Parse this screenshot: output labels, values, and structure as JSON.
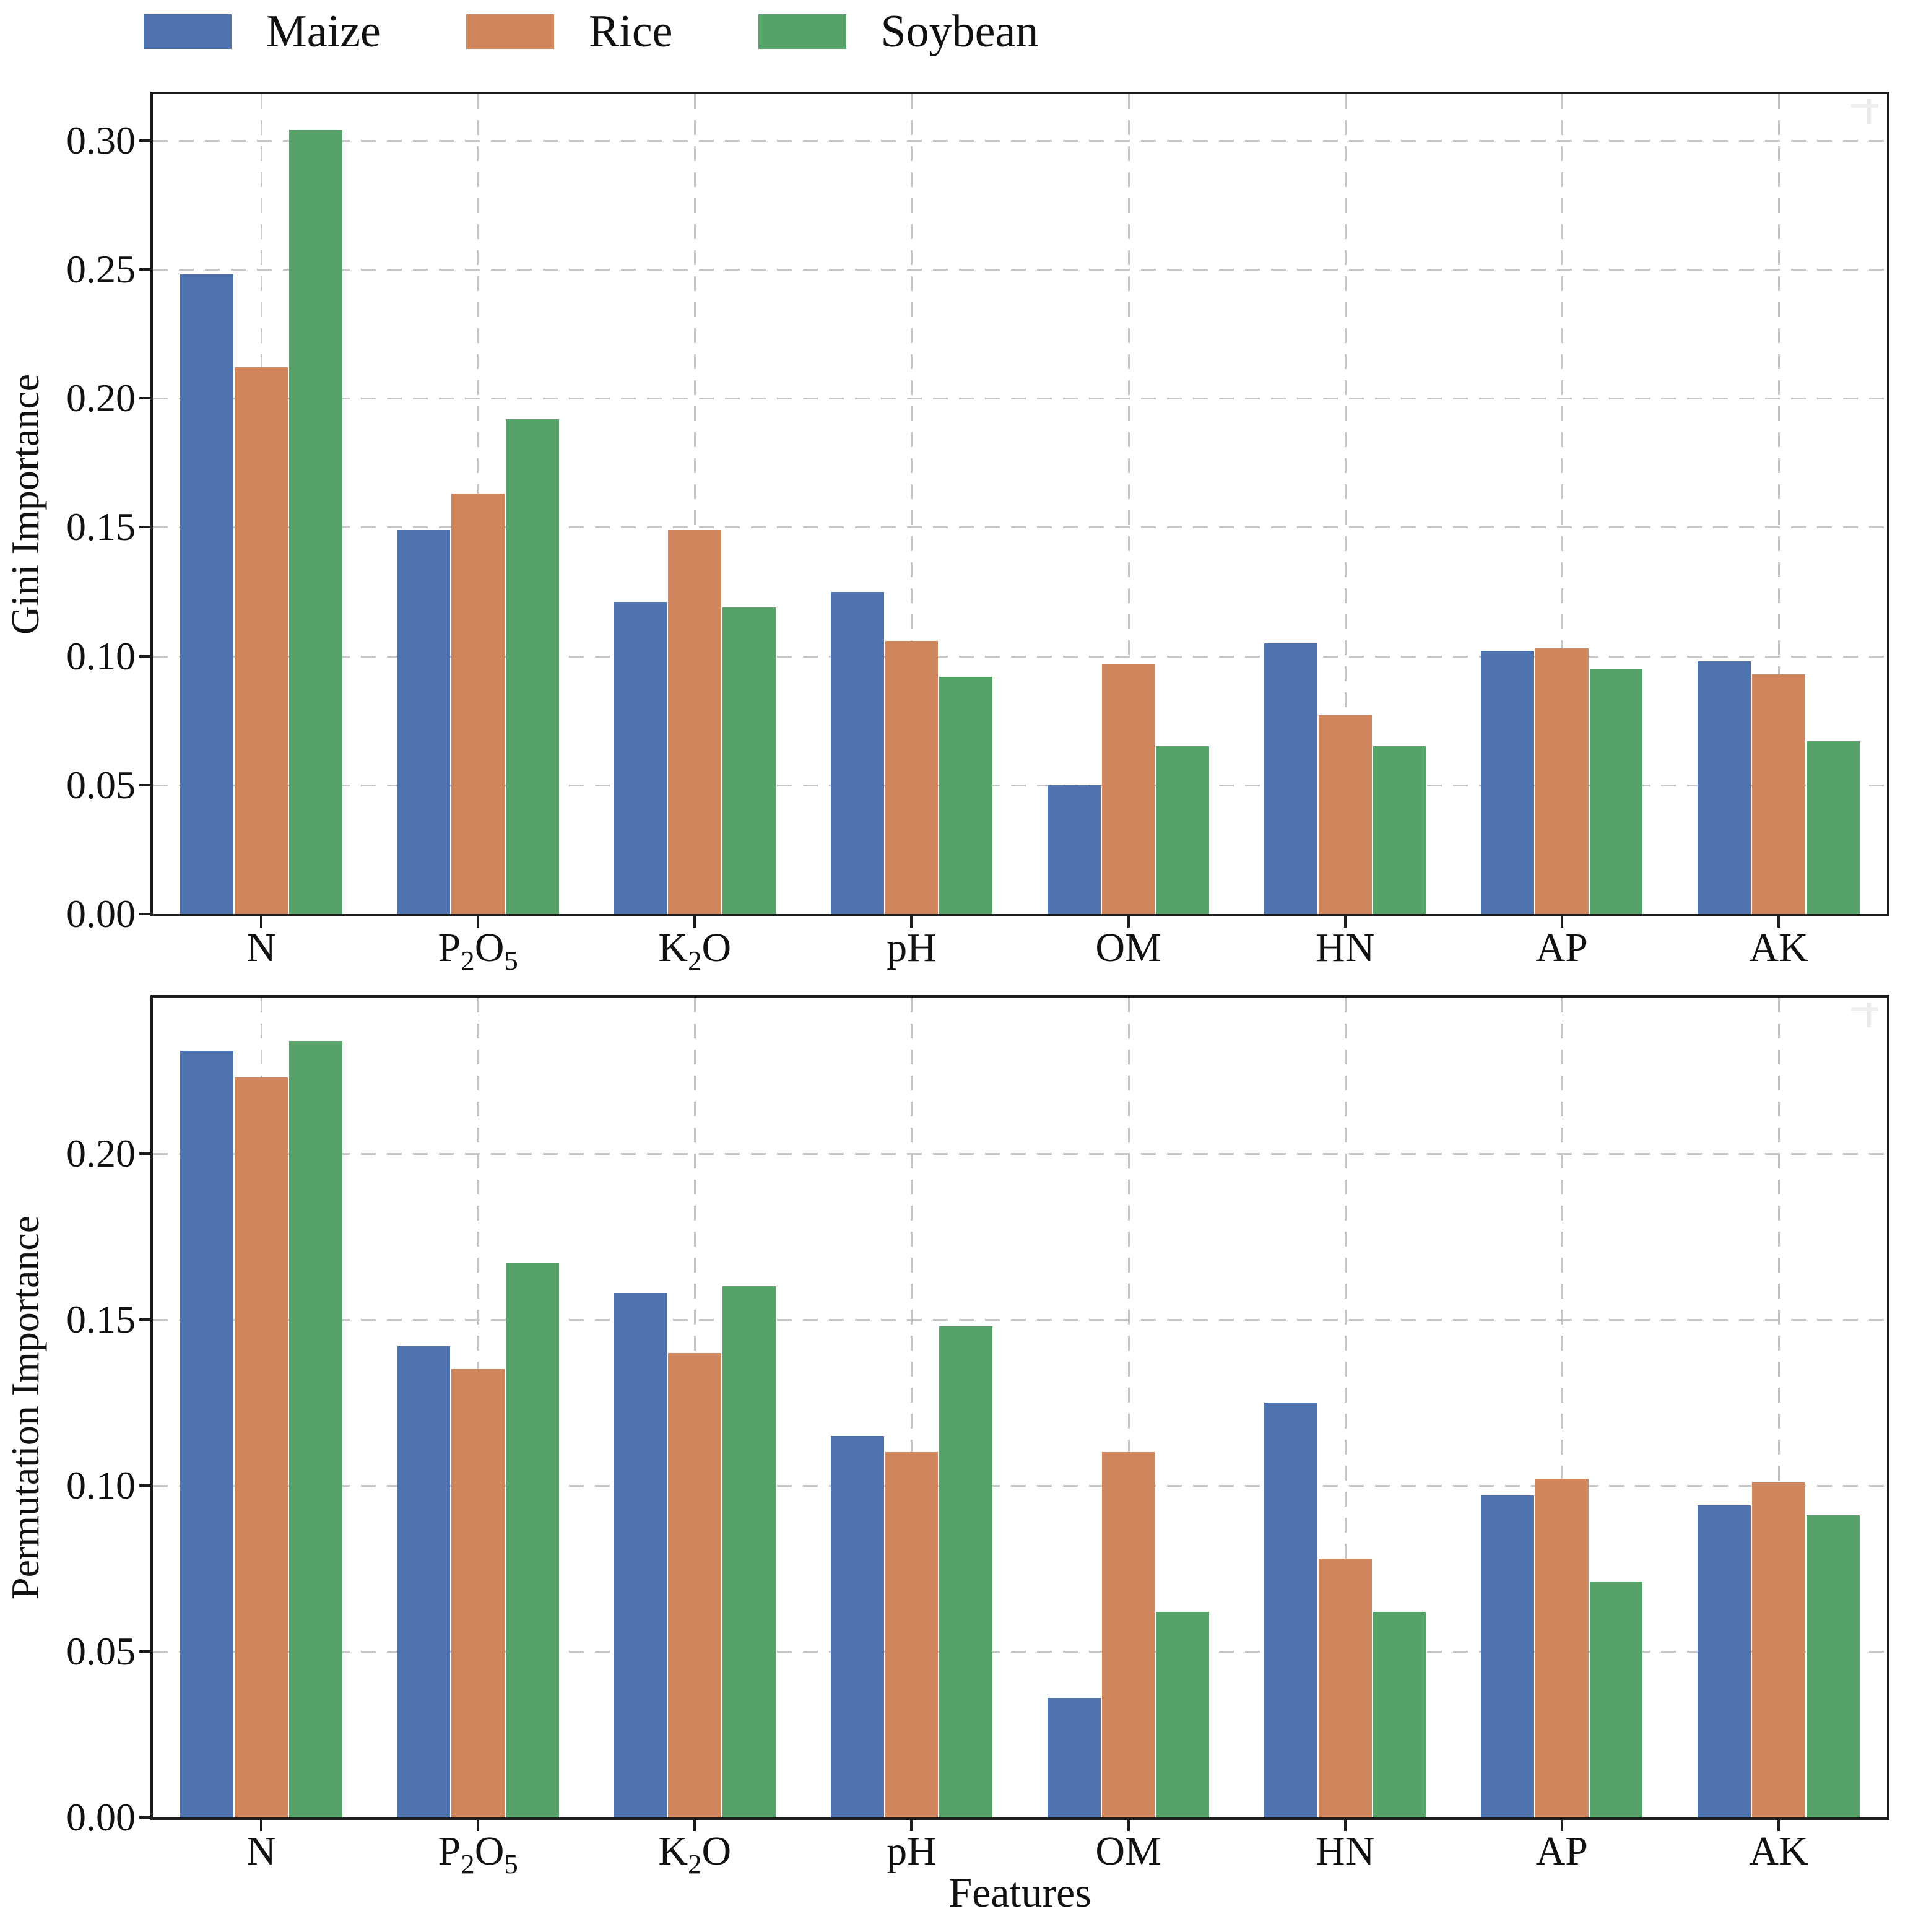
{
  "figure": {
    "description": "Two vertically stacked grouped bar charts comparing feature importance of soil properties for three crops"
  },
  "legend": {
    "items": [
      {
        "label": "Maize",
        "color": "#4f73ae"
      },
      {
        "label": "Rice",
        "color": "#d0875d"
      },
      {
        "label": "Soybean",
        "color": "#57a268"
      }
    ]
  },
  "chart_data": [
    {
      "type": "bar",
      "panel": "top",
      "title": "",
      "ylabel": "Gini Importance",
      "xlabel": "",
      "categories": [
        "N",
        "P₂O₅",
        "K₂O",
        "pH",
        "OM",
        "HN",
        "AP",
        "AK"
      ],
      "series": [
        {
          "name": "Maize",
          "color": "#4f73ae",
          "values": [
            0.248,
            0.149,
            0.121,
            0.125,
            0.05,
            0.105,
            0.102,
            0.098
          ]
        },
        {
          "name": "Rice",
          "color": "#d0875d",
          "values": [
            0.212,
            0.163,
            0.149,
            0.106,
            0.097,
            0.077,
            0.103,
            0.093
          ]
        },
        {
          "name": "Soybean",
          "color": "#57a268",
          "values": [
            0.304,
            0.192,
            0.119,
            0.092,
            0.065,
            0.065,
            0.095,
            0.067
          ]
        }
      ],
      "ytick_labels": [
        "0.00",
        "0.05",
        "0.10",
        "0.15",
        "0.20",
        "0.25",
        "0.30"
      ],
      "ylim": [
        0,
        0.318
      ],
      "grid": {
        "style": "dashed",
        "horizontal": true,
        "vertical": true
      },
      "legend_position": "above figure, horizontal"
    },
    {
      "type": "bar",
      "panel": "bottom",
      "title": "",
      "ylabel": "Permutation Importance",
      "xlabel": "Features",
      "categories": [
        "N",
        "P₂O₅",
        "K₂O",
        "pH",
        "OM",
        "HN",
        "AP",
        "AK"
      ],
      "series": [
        {
          "name": "Maize",
          "color": "#4f73ae",
          "values": [
            0.231,
            0.142,
            0.158,
            0.115,
            0.036,
            0.125,
            0.097,
            0.094
          ]
        },
        {
          "name": "Rice",
          "color": "#d0875d",
          "values": [
            0.223,
            0.135,
            0.14,
            0.11,
            0.11,
            0.078,
            0.102,
            0.101
          ]
        },
        {
          "name": "Soybean",
          "color": "#57a268",
          "values": [
            0.234,
            0.167,
            0.16,
            0.148,
            0.062,
            0.062,
            0.071,
            0.091
          ]
        }
      ],
      "ytick_labels": [
        "0.00",
        "0.05",
        "0.10",
        "0.15",
        "0.20"
      ],
      "ylim": [
        0,
        0.247
      ],
      "grid": {
        "style": "dashed",
        "horizontal": true,
        "vertical": true
      },
      "legend_position": "shared with top panel"
    }
  ]
}
